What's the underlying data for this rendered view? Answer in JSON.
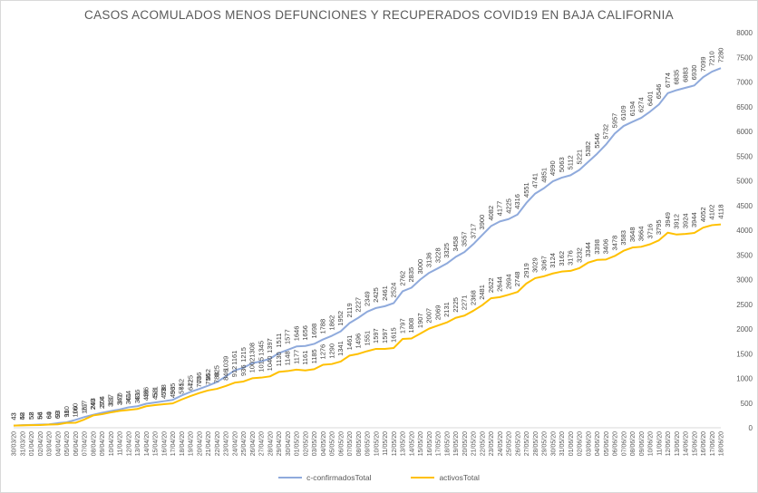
{
  "chart_data": {
    "type": "line",
    "title": "CASOS ACOMULADOS MENOS DEFUNCIONES Y RECUPERADOS COVID19 EN BAJA CALIFORNIA",
    "ylim": [
      0,
      8000
    ],
    "y_ticks": [
      0,
      500,
      1000,
      1500,
      2000,
      2500,
      3000,
      3500,
      4000,
      4500,
      5000,
      5500,
      6000,
      6500,
      7000,
      7500,
      8000
    ],
    "grid": false,
    "legend_position": "bottom",
    "x": [
      "30/03/20",
      "31/03/20",
      "01/04/20",
      "02/04/20",
      "03/04/20",
      "04/04/20",
      "05/04/20",
      "06/04/20",
      "07/04/20",
      "08/04/20",
      "09/04/20",
      "10/04/20",
      "11/04/20",
      "12/04/20",
      "13/04/20",
      "14/04/20",
      "15/04/20",
      "16/04/20",
      "17/04/20",
      "18/04/20",
      "19/04/20",
      "20/04/20",
      "21/04/20",
      "22/04/20",
      "23/04/20",
      "24/04/20",
      "25/04/20",
      "26/04/20",
      "27/04/20",
      "28/04/20",
      "29/04/20",
      "30/04/20",
      "01/05/20",
      "02/05/20",
      "03/05/20",
      "04/05/20",
      "05/05/20",
      "06/05/20",
      "07/05/20",
      "08/05/20",
      "09/05/20",
      "10/05/20",
      "11/05/20",
      "12/05/20",
      "13/05/20",
      "14/05/20",
      "15/05/20",
      "16/05/20",
      "17/05/20",
      "18/05/20",
      "19/05/20",
      "20/05/20",
      "21/05/20",
      "22/05/20",
      "23/05/20",
      "24/05/20",
      "25/05/20",
      "26/05/20",
      "27/05/20",
      "28/05/20",
      "29/05/20",
      "30/05/20",
      "31/05/20",
      "01/06/20",
      "02/06/20",
      "03/06/20",
      "04/06/20",
      "05/06/20",
      "06/06/20",
      "07/06/20",
      "08/06/20",
      "09/06/20",
      "10/06/20",
      "11/06/20",
      "12/06/20",
      "13/06/20",
      "14/06/20",
      "15/06/20",
      "16/06/20",
      "17/06/20",
      "18/06/20"
    ],
    "series": [
      {
        "name": "c-confirmadosTotal",
        "color": "#8faadc",
        "values": [
          43,
          52,
          58,
          64,
          69,
          93,
          110,
          160,
          217,
          263,
          304,
          337,
          370,
          414,
          436,
          486,
          511,
          538,
          565,
          652,
          725,
          786,
          852,
          925,
          1039,
          1161,
          1215,
          1308,
          1345,
          1397,
          1511,
          1577,
          1646,
          1656,
          1698,
          1788,
          1862,
          1952,
          2119,
          2227,
          2349,
          2425,
          2461,
          2524,
          2762,
          2835,
          3000,
          3136,
          3228,
          3325,
          3458,
          3557,
          3717,
          3900,
          4082,
          4177,
          4225,
          4316,
          4551,
          4741,
          4851,
          4990,
          5063,
          5112,
          5221,
          5382,
          5546,
          5732,
          5957,
          6109,
          6194,
          6274,
          6401,
          6546,
          6774,
          6835,
          6883,
          6930,
          7099,
          7210,
          7280
        ]
      },
      {
        "name": "activosTotal",
        "color": "#ffc000",
        "values": [
          43,
          48,
          52,
          56,
          64,
          69,
          98,
          100,
          167,
          249,
          274,
          311,
          342,
          361,
          381,
          436,
          458,
          478,
          493,
          571,
          642,
          703,
          756,
          788,
          846,
          912,
          936,
          1002,
          1015,
          1040,
          1130,
          1148,
          1177,
          1161,
          1185,
          1276,
          1290,
          1341,
          1461,
          1496,
          1551,
          1597,
          1597,
          1615,
          1797,
          1808,
          1907,
          2007,
          2069,
          2131,
          2225,
          2271,
          2368,
          2481,
          2622,
          2644,
          2694,
          2748,
          2919,
          3029,
          3067,
          3124,
          3162,
          3176,
          3232,
          3344,
          3398,
          3406,
          3478,
          3583,
          3648,
          3664,
          3716,
          3795,
          3949,
          3912,
          3924,
          3944,
          4052,
          4102,
          4118
        ]
      }
    ]
  }
}
